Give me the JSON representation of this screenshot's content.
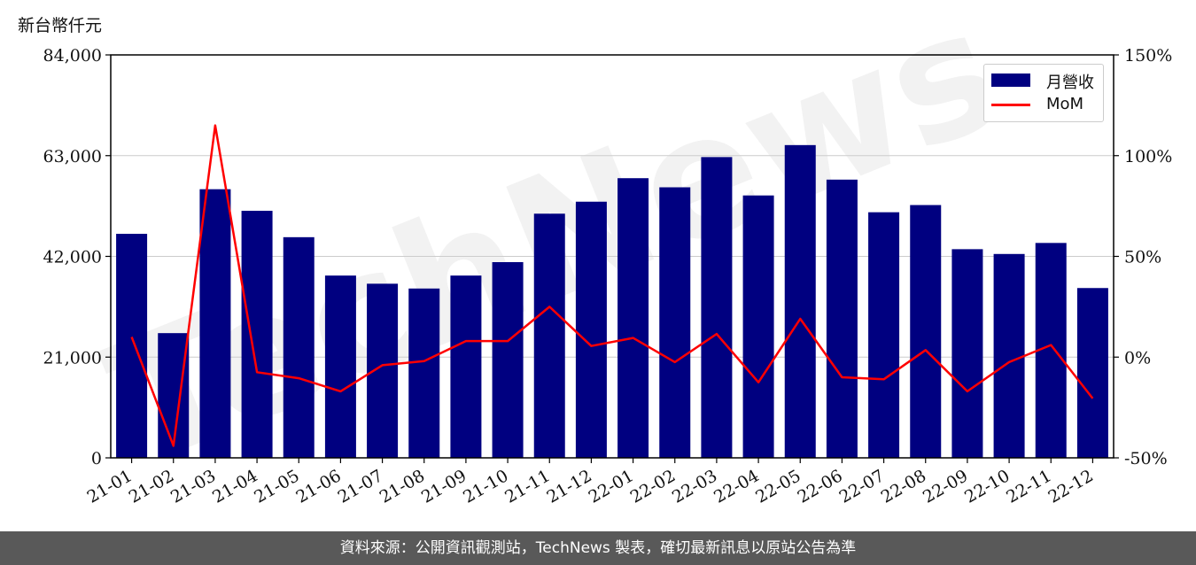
{
  "unit_label": "新台幣仟元",
  "footer": "資料來源：公開資訊觀測站，TechNews 製表，確切最新訊息以原站公告為準",
  "watermark": "TechNews",
  "colors": {
    "bar": "#000080",
    "line": "#ff0000",
    "grid": "#cccccc",
    "footer_bg": "#595959"
  },
  "chart_data": {
    "type": "bar",
    "categories": [
      "21-01",
      "21-02",
      "21-03",
      "21-04",
      "21-05",
      "21-06",
      "21-07",
      "21-08",
      "21-09",
      "21-10",
      "21-11",
      "21-12",
      "22-01",
      "22-02",
      "22-03",
      "22-04",
      "22-05",
      "22-06",
      "22-07",
      "22-08",
      "22-09",
      "22-10",
      "22-11",
      "22-12"
    ],
    "series": [
      {
        "name": "月營收",
        "type": "bar",
        "axis": "left",
        "values": [
          46700,
          26000,
          56000,
          51500,
          46000,
          38000,
          36300,
          35300,
          38000,
          40800,
          50900,
          53400,
          58300,
          56400,
          62700,
          54700,
          65200,
          58000,
          51200,
          52700,
          43500,
          42500,
          44800,
          35400
        ]
      },
      {
        "name": "MoM",
        "type": "line",
        "axis": "right",
        "values": [
          10.0,
          -44.0,
          115.0,
          -7.5,
          -10.5,
          -17.0,
          -4.0,
          -2.0,
          8.0,
          8.0,
          25.0,
          5.5,
          9.5,
          -2.5,
          11.5,
          -12.5,
          19.0,
          -10.0,
          -11.0,
          3.5,
          -17.0,
          -2.5,
          6.0,
          -20.5
        ]
      }
    ],
    "left_axis": {
      "ticks": [
        "0",
        "21,000",
        "42,000",
        "63,000",
        "84,000"
      ],
      "ylim": [
        0,
        84000
      ]
    },
    "right_axis": {
      "ticks": [
        "-50%",
        "0%",
        "50%",
        "100%",
        "150%"
      ],
      "ylim": [
        -50,
        150
      ]
    },
    "grid": true,
    "legend_position": "top-right"
  }
}
